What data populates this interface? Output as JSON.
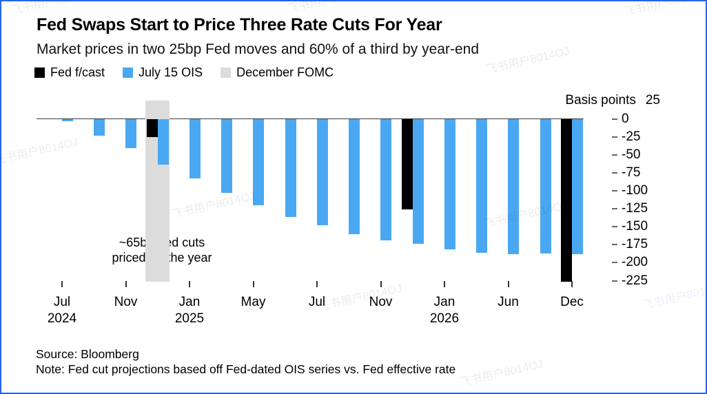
{
  "header": {
    "title": "Fed Swaps Start to Price Three Rate Cuts For Year",
    "subtitle": "Market prices in two 25bp Fed moves and 60% of a third by year-end"
  },
  "legend": {
    "items": [
      {
        "label": "Fed f/cast",
        "color": "#000000"
      },
      {
        "label": "July 15 OIS",
        "color": "#4aa8f3"
      },
      {
        "label": "December FOMC",
        "color": "#dcdcdc"
      }
    ]
  },
  "chart_data": {
    "type": "bar",
    "title": "Fed Swaps Start to Price Three Rate Cuts For Year",
    "subtitle": "Market prices in two 25bp Fed moves and 60% of a third by year-end",
    "unit": "basis points",
    "ylim": [
      -225,
      25
    ],
    "grid": false,
    "legend_position": "top",
    "y_axis": {
      "header": "Basis points",
      "top_label": "25",
      "ticks": [
        0,
        -25,
        -50,
        -75,
        -100,
        -125,
        -150,
        -175,
        -200,
        -225
      ]
    },
    "x_ticks": [
      {
        "month": "Jul",
        "year": "2024"
      },
      {
        "month": "Nov",
        "year": ""
      },
      {
        "month": "Jan",
        "year": "2025"
      },
      {
        "month": "May",
        "year": ""
      },
      {
        "month": "Jul",
        "year": ""
      },
      {
        "month": "Nov",
        "year": ""
      },
      {
        "month": "Jan",
        "year": "2026"
      },
      {
        "month": "Jun",
        "year": ""
      },
      {
        "month": "Dec",
        "year": ""
      }
    ],
    "series": [
      {
        "name": "July 15 OIS",
        "color": "#4aa8f3",
        "values": [
          -3,
          -23,
          -41,
          -64,
          -83,
          -103,
          -120,
          -136,
          -148,
          -160,
          -169,
          -174,
          -181,
          -186,
          -188,
          -187,
          -188
        ]
      },
      {
        "name": "Fed f/cast",
        "color": "#000000",
        "values": [
          null,
          null,
          null,
          -25,
          null,
          null,
          null,
          null,
          null,
          null,
          null,
          -126,
          null,
          null,
          null,
          null,
          -226
        ]
      }
    ],
    "highlight_band": {
      "label": "December FOMC",
      "color": "#dcdcdc",
      "group_index": 3
    },
    "annotation": {
      "line1": "~65bp Fed cuts",
      "line2": "priced for the year"
    }
  },
  "footer": {
    "source": "Source: Bloomberg",
    "note": "Note: Fed cut projections based off Fed-dated OIS series vs. Fed effective rate"
  },
  "watermark": {
    "text": "飞书用户8014OJ"
  }
}
